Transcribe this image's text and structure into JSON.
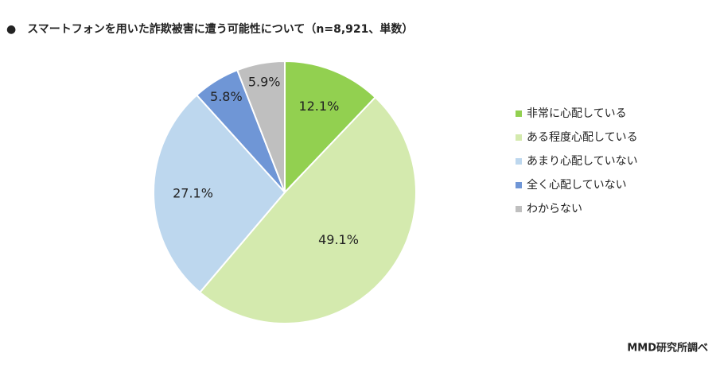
{
  "chart_data": {
    "type": "pie",
    "title": "●　スマートフォンを用いた詐欺被害に遭う可能性について（n=8,921、単数）",
    "categories": [
      "非常に心配している",
      "ある程度心配している",
      "あまり心配していない",
      "全く心配していない",
      "わからない"
    ],
    "values": [
      12.1,
      49.1,
      27.1,
      5.8,
      5.9
    ],
    "value_labels": [
      "12.1%",
      "49.1%",
      "27.1%",
      "5.8%",
      "5.9%"
    ],
    "colors": [
      "#92d050",
      "#d4eaae",
      "#bdd7ee",
      "#6f96d6",
      "#bfbfbf"
    ],
    "legend": "right",
    "source": "MMD研究所調べ"
  }
}
